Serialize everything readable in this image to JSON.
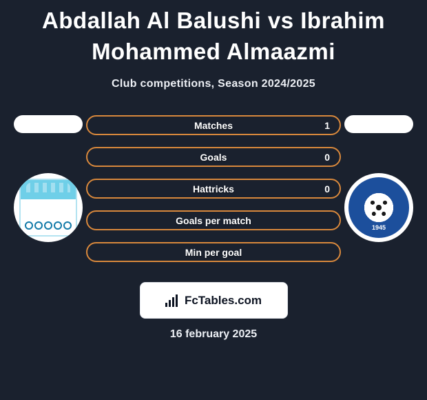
{
  "header": {
    "title": "Abdallah Al Balushi vs Ibrahim Mohammed Almaazmi",
    "subtitle": "Club competitions, Season 2024/2025"
  },
  "left": {
    "crest_primary": "#6fcfe8",
    "crest_secondary": "#ffffff",
    "ring_color": "#127aa8"
  },
  "right": {
    "crest_primary": "#1c4f9c",
    "crest_year": "1945"
  },
  "stats": {
    "border_color": "#d8883c",
    "rows": [
      {
        "label": "Matches",
        "right_value": "1"
      },
      {
        "label": "Goals",
        "right_value": "0"
      },
      {
        "label": "Hattricks",
        "right_value": "0"
      },
      {
        "label": "Goals per match",
        "right_value": ""
      },
      {
        "label": "Min per goal",
        "right_value": ""
      }
    ]
  },
  "brand": {
    "text": "FcTables.com"
  },
  "footer": {
    "date": "16 february 2025"
  },
  "colors": {
    "background": "#1a212e",
    "text": "#ffffff",
    "subtext": "#edf0f5"
  }
}
